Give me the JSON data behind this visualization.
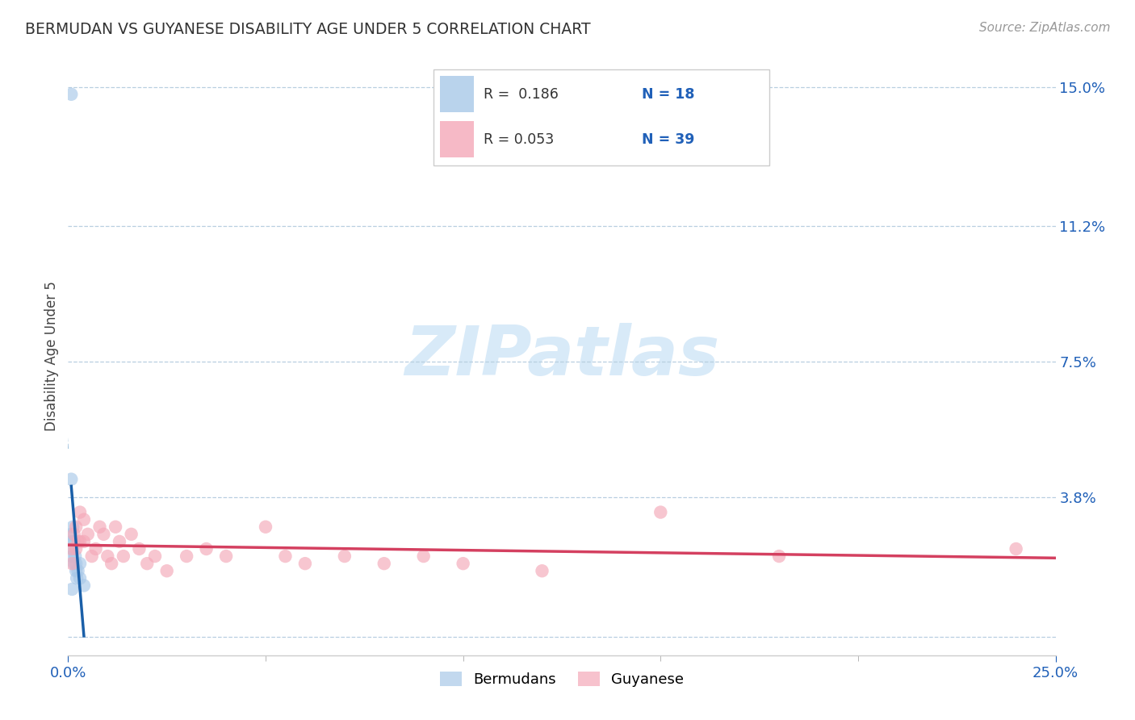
{
  "title": "BERMUDAN VS GUYANESE DISABILITY AGE UNDER 5 CORRELATION CHART",
  "source": "Source: ZipAtlas.com",
  "ylabel": "Disability Age Under 5",
  "xlim": [
    0.0,
    0.25
  ],
  "ylim": [
    -0.005,
    0.158
  ],
  "xtick_positions": [
    0.0,
    0.25
  ],
  "xtick_labels": [
    "0.0%",
    "25.0%"
  ],
  "ytick_values": [
    0.0,
    0.038,
    0.075,
    0.112,
    0.15
  ],
  "ytick_labels": [
    "",
    "3.8%",
    "7.5%",
    "11.2%",
    "15.0%"
  ],
  "color_blue": "#a8c8e8",
  "color_pink": "#f4a8b8",
  "color_blue_line": "#1a5fa8",
  "color_pink_line": "#d44060",
  "color_dashed_blue": "#90b8d8",
  "background": "#ffffff",
  "watermark_color": "#d8eaf8",
  "bermudans_x": [
    0.0008,
    0.0008,
    0.0008,
    0.001,
    0.001,
    0.0012,
    0.0012,
    0.0015,
    0.0015,
    0.0018,
    0.002,
    0.002,
    0.0022,
    0.0025,
    0.003,
    0.003,
    0.004,
    0.001
  ],
  "bermudans_y": [
    0.148,
    0.043,
    0.028,
    0.026,
    0.022,
    0.03,
    0.024,
    0.026,
    0.02,
    0.022,
    0.02,
    0.018,
    0.016,
    0.018,
    0.02,
    0.016,
    0.014,
    0.013
  ],
  "guyanese_x": [
    0.0008,
    0.001,
    0.0015,
    0.002,
    0.002,
    0.0025,
    0.003,
    0.003,
    0.004,
    0.004,
    0.005,
    0.006,
    0.007,
    0.008,
    0.009,
    0.01,
    0.011,
    0.012,
    0.013,
    0.014,
    0.016,
    0.018,
    0.02,
    0.022,
    0.025,
    0.03,
    0.035,
    0.04,
    0.05,
    0.055,
    0.06,
    0.07,
    0.08,
    0.09,
    0.1,
    0.12,
    0.15,
    0.18,
    0.24
  ],
  "guyanese_y": [
    0.024,
    0.02,
    0.028,
    0.03,
    0.024,
    0.026,
    0.034,
    0.026,
    0.032,
    0.026,
    0.028,
    0.022,
    0.024,
    0.03,
    0.028,
    0.022,
    0.02,
    0.03,
    0.026,
    0.022,
    0.028,
    0.024,
    0.02,
    0.022,
    0.018,
    0.022,
    0.024,
    0.022,
    0.03,
    0.022,
    0.02,
    0.022,
    0.02,
    0.022,
    0.02,
    0.018,
    0.034,
    0.022,
    0.024
  ]
}
